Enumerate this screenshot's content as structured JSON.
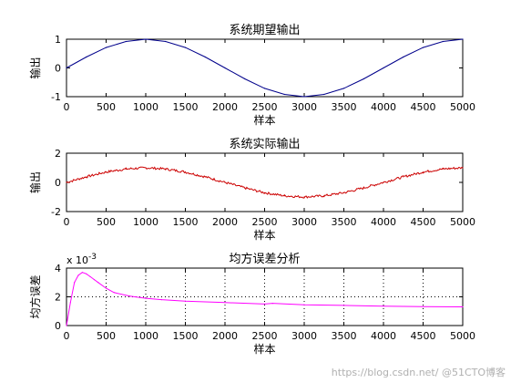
{
  "chart_data": [
    {
      "type": "line",
      "title": "系统期望输出",
      "xlabel": "样本",
      "ylabel": "输出",
      "xlim": [
        0,
        5000
      ],
      "ylim": [
        -1,
        1
      ],
      "xticks": [
        "0",
        "500",
        "1000",
        "1500",
        "2000",
        "2500",
        "3000",
        "3500",
        "4000",
        "4500",
        "5000"
      ],
      "yticks": [
        "-1",
        "0",
        "1"
      ],
      "grid": false,
      "series": [
        {
          "color": "#00008b",
          "x": [
            0,
            250,
            500,
            750,
            1000,
            1250,
            1500,
            1750,
            2000,
            2250,
            2500,
            2750,
            3000,
            3250,
            3500,
            3750,
            4000,
            4250,
            4500,
            4750,
            5000
          ],
          "y": [
            0.0,
            0.38,
            0.71,
            0.92,
            1.0,
            0.92,
            0.71,
            0.38,
            0.0,
            -0.38,
            -0.71,
            -0.92,
            -1.0,
            -0.92,
            -0.71,
            -0.38,
            0.0,
            0.38,
            0.71,
            0.92,
            1.0
          ]
        }
      ]
    },
    {
      "type": "line",
      "title": "系统实际输出",
      "xlabel": "样本",
      "ylabel": "输出",
      "xlim": [
        0,
        5000
      ],
      "ylim": [
        -2,
        2
      ],
      "xticks": [
        "0",
        "500",
        "1000",
        "1500",
        "2000",
        "2500",
        "3000",
        "3500",
        "4000",
        "4500",
        "5000"
      ],
      "yticks": [
        "-2",
        "0",
        "2"
      ],
      "grid": false,
      "series": [
        {
          "color": "#cc0000",
          "x": [
            0,
            250,
            500,
            750,
            1000,
            1250,
            1500,
            1750,
            2000,
            2250,
            2500,
            2750,
            3000,
            3250,
            3500,
            3750,
            4000,
            4250,
            4500,
            4750,
            5000
          ],
          "y": [
            0.0,
            0.38,
            0.71,
            0.92,
            1.0,
            0.92,
            0.71,
            0.38,
            0.0,
            -0.38,
            -0.71,
            -0.92,
            -1.0,
            -0.92,
            -0.71,
            -0.38,
            0.0,
            0.38,
            0.71,
            0.92,
            1.0
          ]
        }
      ]
    },
    {
      "type": "line",
      "title": "均方误差分析",
      "xlabel": "样本",
      "ylabel": "均方误差",
      "ylabel_exponent": "x 10",
      "ylabel_exponent_power": "-3",
      "xlim": [
        0,
        5000
      ],
      "ylim": [
        0,
        4
      ],
      "xticks": [
        "0",
        "500",
        "1000",
        "1500",
        "2000",
        "2500",
        "3000",
        "3500",
        "4000",
        "4500",
        "5000"
      ],
      "yticks": [
        "0",
        "2",
        "4"
      ],
      "grid": true,
      "series": [
        {
          "color": "#ff00ff",
          "x": [
            0,
            50,
            100,
            150,
            200,
            250,
            300,
            350,
            400,
            500,
            600,
            800,
            1000,
            1200,
            1500,
            2000,
            2500,
            2600,
            3000,
            3500,
            4000,
            4500,
            5000
          ],
          "y": [
            0.0,
            1.6,
            3.0,
            3.5,
            3.7,
            3.6,
            3.4,
            3.2,
            3.0,
            2.6,
            2.3,
            2.05,
            1.9,
            1.8,
            1.7,
            1.6,
            1.5,
            1.55,
            1.45,
            1.4,
            1.35,
            1.32,
            1.3
          ]
        }
      ]
    }
  ],
  "watermark": "https://blog.csdn.net/  @51CTO博客"
}
